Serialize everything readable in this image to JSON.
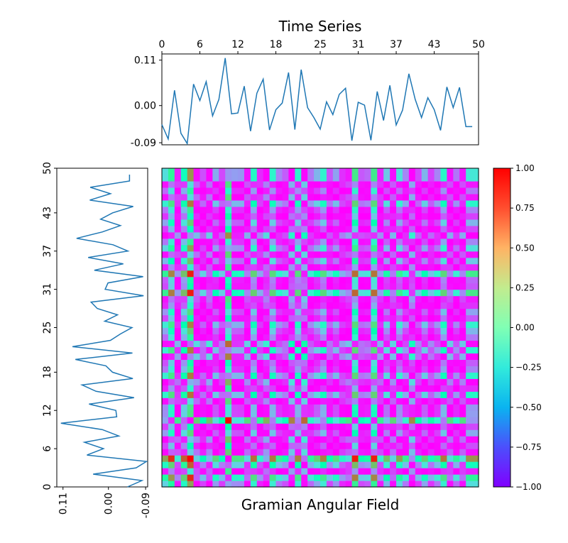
{
  "chart_data": [
    {
      "type": "line",
      "title": "Time Series",
      "xticks": [
        "0",
        "6",
        "12",
        "18",
        "25",
        "31",
        "37",
        "43",
        "50"
      ],
      "yticks": [
        "0.11",
        "0.00",
        "-0.09"
      ],
      "xlim": [
        0,
        50
      ],
      "ylim": [
        -0.095,
        0.125
      ],
      "values": [
        -0.046,
        -0.081,
        0.037,
        -0.067,
        -0.092,
        0.052,
        0.012,
        0.058,
        -0.025,
        0.015,
        0.115,
        -0.02,
        -0.018,
        0.047,
        -0.062,
        0.03,
        0.064,
        -0.059,
        -0.01,
        0.006,
        0.08,
        -0.058,
        0.087,
        -0.005,
        -0.029,
        -0.057,
        0.009,
        -0.022,
        0.027,
        0.042,
        -0.085,
        0.008,
        0.001,
        -0.084,
        0.034,
        -0.036,
        0.049,
        -0.047,
        -0.011,
        0.077,
        0.015,
        -0.029,
        0.019,
        -0.01,
        -0.06,
        0.045,
        -0.005,
        0.044,
        -0.051,
        -0.051
      ]
    },
    {
      "type": "line",
      "orientation": "vertical",
      "yticks": [
        "0",
        "6",
        "12",
        "18",
        "25",
        "31",
        "37",
        "43",
        "50"
      ],
      "xticks": [
        "0.11",
        "0.00",
        "-0.09"
      ]
    },
    {
      "type": "heatmap",
      "xlabel": "Gramian Angular Field",
      "colormap": "rainbow",
      "vmin": -1,
      "vmax": 1,
      "colorbar_ticks": [
        "1.00",
        "0.75",
        "0.50",
        "0.25",
        "0.00",
        "−0.25",
        "−0.50",
        "−0.75",
        "−1.00"
      ],
      "matrix_definition": "cos(phi_i + phi_j) with phi = arccos of the time series rescaled to [-1, 1]"
    }
  ]
}
